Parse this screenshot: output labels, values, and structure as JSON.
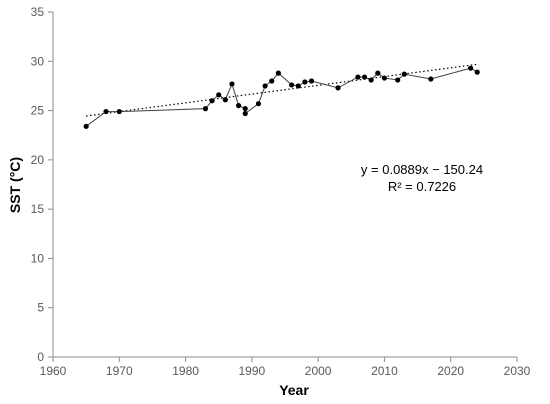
{
  "chart_data": {
    "type": "scatter",
    "xlabel": "Year",
    "ylabel": "SST (°C)",
    "xlim": [
      1960,
      2030
    ],
    "ylim": [
      0,
      35
    ],
    "xticks": [
      1960,
      1970,
      1980,
      1990,
      2000,
      2010,
      2020,
      2030
    ],
    "yticks": [
      0,
      5,
      10,
      15,
      20,
      25,
      30,
      35
    ],
    "grid": false,
    "series": [
      {
        "x": [
          1965,
          1968,
          1970,
          1983,
          1984,
          1985,
          1986,
          1987,
          1988,
          1989,
          1989,
          1991,
          1992,
          1993,
          1994,
          1996,
          1997,
          1998,
          1999,
          2003,
          2006,
          2007,
          2008,
          2009,
          2010,
          2012,
          2013,
          2017,
          2023,
          2024
        ],
        "y": [
          23.4,
          24.9,
          24.9,
          25.2,
          26.0,
          26.6,
          26.1,
          27.7,
          25.5,
          25.2,
          24.7,
          25.7,
          27.5,
          28.0,
          28.8,
          27.6,
          27.5,
          27.9,
          28.0,
          27.3,
          28.4,
          28.4,
          28.1,
          28.8,
          28.3,
          28.1,
          28.7,
          28.2,
          29.3,
          28.9
        ]
      }
    ],
    "trendline": {
      "equation": "y = 0.0889x − 150.24",
      "r2": "R² = 0.7226",
      "slope": 0.0889,
      "intercept": -150.24,
      "x_range": [
        1965,
        2024
      ]
    }
  }
}
